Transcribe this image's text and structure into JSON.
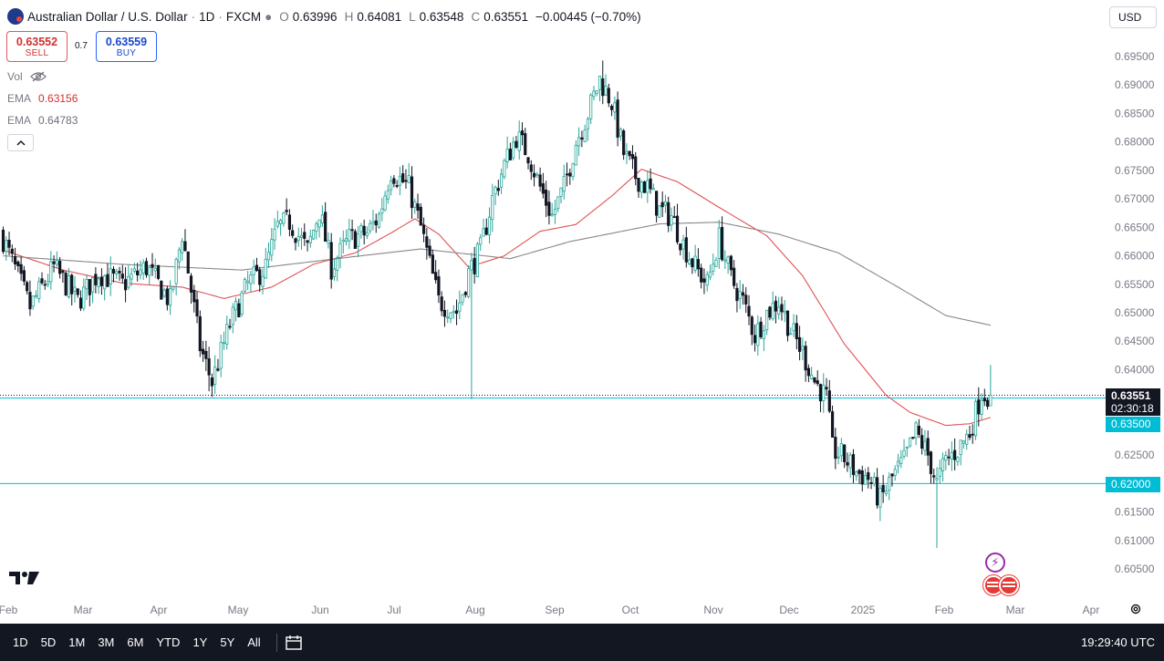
{
  "header": {
    "symbol_title": "Australian Dollar / U.S. Dollar",
    "interval": "1D",
    "source": "FXCM",
    "ohlc": [
      {
        "key": "O",
        "value": "0.63996"
      },
      {
        "key": "H",
        "value": "0.64081"
      },
      {
        "key": "L",
        "value": "0.63548"
      },
      {
        "key": "C",
        "value": "0.63551"
      }
    ],
    "change": "−0.00445 (−0.70%)",
    "currency": "USD"
  },
  "trade": {
    "sell_price": "0.63552",
    "sell_label": "SELL",
    "spread": "0.7",
    "buy_price": "0.63559",
    "buy_label": "BUY"
  },
  "indicators": {
    "vol_label": "Vol",
    "ema_fast_label": "EMA",
    "ema_fast_value": "0.63156",
    "ema_slow_label": "EMA",
    "ema_slow_value": "0.64783"
  },
  "price_tags": {
    "last_price": "0.63551",
    "countdown": "02:30:18",
    "level_1": "0.63500",
    "level_2": "0.62000"
  },
  "bottom_bar": {
    "timeframes": [
      "1D",
      "5D",
      "1M",
      "3M",
      "6M",
      "YTD",
      "1Y",
      "5Y",
      "All"
    ],
    "clock": "19:29:40 UTC"
  },
  "colors": {
    "up": "#26a69a",
    "down": "#131722",
    "ema_fast": "#e05255",
    "ema_slow": "#888888",
    "level_line": "#00bcd4",
    "last_line": "#131722"
  },
  "chart_data": {
    "type": "candlestick",
    "y_ticks": [
      "0.69500",
      "0.69000",
      "0.68500",
      "0.68000",
      "0.67500",
      "0.67000",
      "0.66500",
      "0.66000",
      "0.65500",
      "0.65000",
      "0.64500",
      "0.64000",
      "0.63500",
      "0.63000",
      "0.62500",
      "0.62000",
      "0.61500",
      "0.61000",
      "0.60500"
    ],
    "ylim": [
      0.6024,
      0.6996
    ],
    "x_ticks": [
      "Feb",
      "Mar",
      "Apr",
      "May",
      "Jun",
      "Jul",
      "Aug",
      "Sep",
      "Oct",
      "Nov",
      "Dec",
      "2025",
      "Feb",
      "Mar",
      "Apr"
    ],
    "horizontal_levels": [
      0.635,
      0.62
    ],
    "last_price": 0.63551,
    "series": [
      {
        "name": "Price",
        "anchors_close": [
          [
            0,
            0.663
          ],
          [
            9,
            0.651
          ],
          [
            17,
            0.658
          ],
          [
            25,
            0.652
          ],
          [
            32,
            0.657
          ],
          [
            40,
            0.655
          ],
          [
            48,
            0.658
          ],
          [
            56,
            0.652
          ],
          [
            60,
            0.664
          ],
          [
            66,
            0.644
          ],
          [
            70,
            0.6378
          ],
          [
            76,
            0.648
          ],
          [
            82,
            0.655
          ],
          [
            88,
            0.658
          ],
          [
            92,
            0.665
          ],
          [
            96,
            0.666
          ],
          [
            102,
            0.661
          ],
          [
            106,
            0.668
          ],
          [
            110,
            0.658
          ],
          [
            116,
            0.663
          ],
          [
            122,
            0.664
          ],
          [
            126,
            0.667
          ],
          [
            130,
            0.675
          ],
          [
            136,
            0.672
          ],
          [
            140,
            0.665
          ],
          [
            146,
            0.652
          ],
          [
            152,
            0.6502
          ],
          [
            156,
            0.657
          ],
          [
            160,
            0.661
          ],
          [
            164,
            0.67
          ],
          [
            168,
            0.676
          ],
          [
            172,
            0.681
          ],
          [
            176,
            0.678
          ],
          [
            180,
            0.672
          ],
          [
            184,
            0.667
          ],
          [
            188,
            0.672
          ],
          [
            192,
            0.68
          ],
          [
            196,
            0.685
          ],
          [
            200,
            0.691
          ],
          [
            204,
            0.687
          ],
          [
            208,
            0.678
          ],
          [
            212,
            0.674
          ],
          [
            216,
            0.672
          ],
          [
            220,
            0.668
          ],
          [
            224,
            0.667
          ],
          [
            228,
            0.662
          ],
          [
            232,
            0.658
          ],
          [
            236,
            0.655
          ],
          [
            240,
            0.663
          ],
          [
            244,
            0.656
          ],
          [
            248,
            0.652
          ],
          [
            252,
            0.646
          ],
          [
            256,
            0.65
          ],
          [
            260,
            0.652
          ],
          [
            264,
            0.647
          ],
          [
            268,
            0.643
          ],
          [
            272,
            0.638
          ],
          [
            276,
            0.635
          ],
          [
            278,
            0.626
          ],
          [
            282,
            0.6245
          ],
          [
            286,
            0.622
          ],
          [
            290,
            0.621
          ],
          [
            294,
            0.617
          ],
          [
            298,
            0.621
          ],
          [
            302,
            0.624
          ],
          [
            306,
            0.629
          ],
          [
            310,
            0.625
          ],
          [
            313,
            0.62
          ],
          [
            316,
            0.624
          ],
          [
            320,
            0.626
          ],
          [
            324,
            0.629
          ],
          [
            328,
            0.636
          ],
          [
            331,
            0.6355
          ]
        ]
      },
      {
        "name": "EMA",
        "value": 0.63156,
        "anchors": [
          [
            0,
            0.661
          ],
          [
            20,
            0.6575
          ],
          [
            40,
            0.6552
          ],
          [
            60,
            0.6545
          ],
          [
            74,
            0.6525
          ],
          [
            90,
            0.6545
          ],
          [
            104,
            0.6585
          ],
          [
            118,
            0.6605
          ],
          [
            130,
            0.664
          ],
          [
            138,
            0.6665
          ],
          [
            146,
            0.6638
          ],
          [
            156,
            0.658
          ],
          [
            168,
            0.66
          ],
          [
            180,
            0.6643
          ],
          [
            192,
            0.6655
          ],
          [
            204,
            0.6705
          ],
          [
            214,
            0.6752
          ],
          [
            226,
            0.673
          ],
          [
            240,
            0.6685
          ],
          [
            256,
            0.6635
          ],
          [
            268,
            0.6565
          ],
          [
            282,
            0.6445
          ],
          [
            296,
            0.6355
          ],
          [
            304,
            0.6325
          ],
          [
            316,
            0.6302
          ],
          [
            324,
            0.6305
          ],
          [
            331,
            0.6316
          ]
        ]
      },
      {
        "name": "EMA",
        "value": 0.64783,
        "anchors": [
          [
            0,
            0.66
          ],
          [
            40,
            0.6585
          ],
          [
            80,
            0.6575
          ],
          [
            120,
            0.66
          ],
          [
            140,
            0.6612
          ],
          [
            170,
            0.6595
          ],
          [
            190,
            0.6625
          ],
          [
            220,
            0.6656
          ],
          [
            240,
            0.6659
          ],
          [
            260,
            0.6638
          ],
          [
            280,
            0.6605
          ],
          [
            300,
            0.6545
          ],
          [
            316,
            0.6495
          ],
          [
            331,
            0.6478
          ]
        ]
      }
    ]
  }
}
